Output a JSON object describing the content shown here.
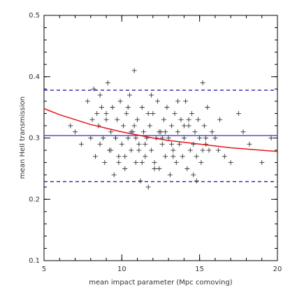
{
  "chart_data": {
    "type": "scatter",
    "xlabel": "mean impact parameter (Mpc comoving)",
    "ylabel": "mean HeII transmission",
    "xlim": [
      5,
      20
    ],
    "xticks": [
      5,
      10,
      15,
      20
    ],
    "ylim": [
      0.1,
      0.5
    ],
    "yticks": [
      0.1,
      0.2,
      0.3,
      0.4,
      0.5
    ],
    "series": [
      {
        "type": "scatter",
        "color": "#333333",
        "x": [
          7.0,
          7.4,
          7.8,
          8.0,
          8.2,
          8.3,
          8.4,
          8.5,
          8.6,
          8.7,
          8.8,
          8.9,
          9.0,
          9.1,
          9.2,
          9.3,
          9.4,
          9.5,
          9.6,
          9.7,
          9.8,
          9.9,
          10.0,
          10.1,
          10.2,
          10.3,
          10.4,
          10.5,
          10.6,
          10.7,
          10.8,
          10.9,
          11.0,
          11.1,
          11.2,
          11.3,
          11.4,
          11.5,
          11.6,
          11.7,
          11.8,
          11.9,
          12.0,
          12.1,
          12.2,
          12.3,
          12.4,
          12.5,
          12.6,
          12.7,
          12.8,
          12.9,
          13.0,
          13.1,
          13.2,
          13.3,
          13.4,
          13.5,
          13.6,
          13.7,
          13.8,
          13.9,
          14.0,
          14.1,
          14.2,
          14.3,
          14.4,
          14.5,
          14.6,
          14.7,
          14.8,
          14.9,
          15.0,
          15.1,
          15.2,
          15.3,
          15.4,
          15.5,
          15.6,
          15.8,
          16.0,
          16.3,
          16.6,
          17.0,
          17.5,
          17.8,
          18.2,
          19.0,
          19.6,
          6.7,
          8.1,
          9.3,
          10.4,
          10.9,
          11.3,
          11.9,
          12.4,
          13.2,
          14.3,
          15.2,
          9.0,
          9.6,
          10.2,
          10.8,
          11.5,
          12.1,
          12.8,
          13.6,
          14.6,
          15.4,
          8.6,
          9.8,
          10.6,
          11.1,
          11.7,
          12.6,
          13.3,
          14.0,
          14.8,
          16.2
        ],
        "values": [
          0.31,
          0.29,
          0.36,
          0.3,
          0.38,
          0.27,
          0.34,
          0.32,
          0.29,
          0.35,
          0.3,
          0.26,
          0.33,
          0.39,
          0.28,
          0.31,
          0.35,
          0.24,
          0.3,
          0.33,
          0.27,
          0.36,
          0.29,
          0.32,
          0.25,
          0.34,
          0.3,
          0.37,
          0.28,
          0.31,
          0.41,
          0.26,
          0.33,
          0.29,
          0.23,
          0.35,
          0.31,
          0.27,
          0.3,
          0.22,
          0.32,
          0.28,
          0.34,
          0.26,
          0.3,
          0.36,
          0.25,
          0.31,
          0.29,
          0.33,
          0.27,
          0.35,
          0.3,
          0.24,
          0.32,
          0.28,
          0.34,
          0.26,
          0.31,
          0.29,
          0.33,
          0.27,
          0.3,
          0.36,
          0.25,
          0.32,
          0.28,
          0.34,
          0.29,
          0.31,
          0.27,
          0.33,
          0.3,
          0.26,
          0.39,
          0.32,
          0.29,
          0.35,
          0.28,
          0.31,
          0.3,
          0.33,
          0.27,
          0.26,
          0.34,
          0.31,
          0.29,
          0.26,
          0.3,
          0.32,
          0.33,
          0.28,
          0.35,
          0.3,
          0.26,
          0.37,
          0.31,
          0.29,
          0.33,
          0.28,
          0.34,
          0.3,
          0.27,
          0.32,
          0.29,
          0.25,
          0.31,
          0.36,
          0.24,
          0.3,
          0.37,
          0.26,
          0.31,
          0.28,
          0.34,
          0.3,
          0.27,
          0.32,
          0.23,
          0.28
        ]
      },
      {
        "type": "line",
        "color": "#e8141e",
        "x": [
          5,
          6,
          7,
          8,
          9,
          10,
          11,
          12,
          13,
          14,
          15,
          16,
          17,
          18,
          19,
          20
        ],
        "values": [
          0.348,
          0.338,
          0.33,
          0.322,
          0.316,
          0.31,
          0.305,
          0.3,
          0.296,
          0.293,
          0.29,
          0.287,
          0.284,
          0.282,
          0.28,
          0.278
        ]
      }
    ],
    "hlines": [
      {
        "value": 0.304,
        "color": "#3030c8",
        "style": "solid"
      },
      {
        "value": 0.378,
        "color": "#2020b0",
        "style": "dashed"
      },
      {
        "value": 0.229,
        "color": "#2020b0",
        "style": "dashed"
      }
    ]
  }
}
